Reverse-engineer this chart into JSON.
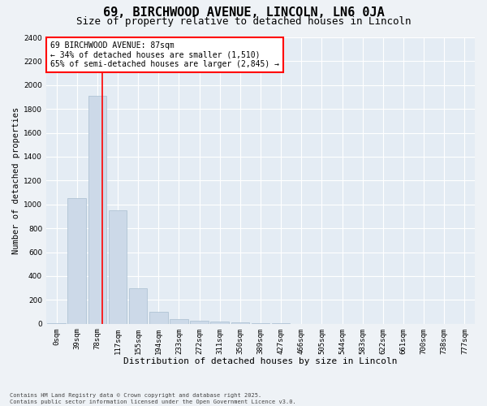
{
  "title1": "69, BIRCHWOOD AVENUE, LINCOLN, LN6 0JA",
  "title2": "Size of property relative to detached houses in Lincoln",
  "xlabel": "Distribution of detached houses by size in Lincoln",
  "ylabel": "Number of detached properties",
  "bin_labels": [
    "0sqm",
    "39sqm",
    "78sqm",
    "117sqm",
    "155sqm",
    "194sqm",
    "233sqm",
    "272sqm",
    "311sqm",
    "350sqm",
    "389sqm",
    "427sqm",
    "466sqm",
    "505sqm",
    "544sqm",
    "583sqm",
    "622sqm",
    "661sqm",
    "700sqm",
    "738sqm",
    "777sqm"
  ],
  "bar_values": [
    5,
    1050,
    1910,
    950,
    300,
    100,
    40,
    25,
    20,
    15,
    5,
    2,
    1,
    0,
    0,
    0,
    0,
    0,
    0,
    0,
    0
  ],
  "bar_color": "#ccd9e8",
  "bar_edge_color": "#a8bdd0",
  "annotation_text": "69 BIRCHWOOD AVENUE: 87sqm\n← 34% of detached houses are smaller (1,510)\n65% of semi-detached houses are larger (2,845) →",
  "annotation_box_color": "white",
  "annotation_box_edge_color": "red",
  "ylim": [
    0,
    2400
  ],
  "yticks": [
    0,
    200,
    400,
    600,
    800,
    1000,
    1200,
    1400,
    1600,
    1800,
    2000,
    2200,
    2400
  ],
  "footer1": "Contains HM Land Registry data © Crown copyright and database right 2025.",
  "footer2": "Contains public sector information licensed under the Open Government Licence v3.0.",
  "bg_color": "#eef2f6",
  "plot_bg_color": "#e4ecf4",
  "grid_color": "#ffffff",
  "title1_fontsize": 11,
  "title2_fontsize": 9,
  "tick_fontsize": 6.5,
  "ylabel_fontsize": 7.5,
  "xlabel_fontsize": 8,
  "ann_fontsize": 7,
  "footer_fontsize": 5
}
